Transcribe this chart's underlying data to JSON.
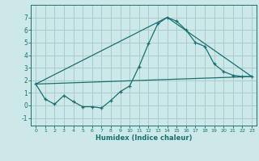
{
  "xlabel": "Humidex (Indice chaleur)",
  "background_color": "#cce8e8",
  "grid_color": "#aacccc",
  "line_color": "#1a7070",
  "xlim": [
    -0.5,
    23.5
  ],
  "ylim": [
    -1.6,
    8.0
  ],
  "yticks": [
    -1,
    0,
    1,
    2,
    3,
    4,
    5,
    6,
    7
  ],
  "xticks": [
    0,
    1,
    2,
    3,
    4,
    5,
    6,
    7,
    8,
    9,
    10,
    11,
    12,
    13,
    14,
    15,
    16,
    17,
    18,
    19,
    20,
    21,
    22,
    23
  ],
  "series1_x": [
    0,
    1,
    2,
    3,
    4,
    5,
    6,
    7,
    8,
    9,
    10,
    11,
    12,
    13,
    14,
    15,
    16,
    17,
    18,
    19,
    20,
    21,
    22,
    23
  ],
  "series1_y": [
    1.7,
    0.5,
    0.1,
    0.8,
    0.3,
    -0.1,
    -0.1,
    -0.2,
    0.4,
    1.1,
    1.55,
    3.1,
    4.9,
    6.5,
    7.0,
    6.7,
    6.0,
    5.0,
    4.7,
    3.3,
    2.7,
    2.4,
    2.3,
    2.3
  ],
  "series2_x": [
    0,
    23
  ],
  "series2_y": [
    1.7,
    2.3
  ],
  "series3_x": [
    0,
    14,
    23
  ],
  "series3_y": [
    1.7,
    7.0,
    2.3
  ]
}
